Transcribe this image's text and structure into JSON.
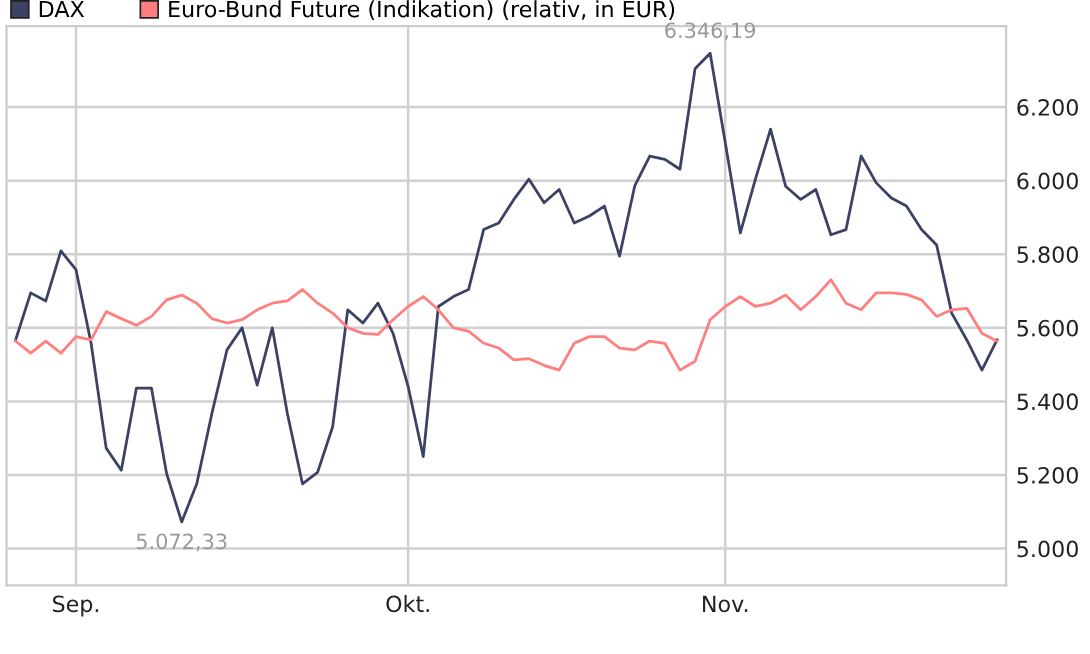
{
  "chart_data": {
    "type": "line",
    "categories": [
      null,
      null,
      null,
      null,
      "Sep.",
      null,
      null,
      null,
      null,
      null,
      null,
      null,
      null,
      null,
      null,
      null,
      null,
      null,
      null,
      null,
      null,
      null,
      null,
      null,
      null,
      null,
      "Okt.",
      null,
      null,
      null,
      null,
      null,
      null,
      null,
      null,
      null,
      null,
      null,
      null,
      null,
      null,
      null,
      null,
      null,
      null,
      null,
      null,
      "Nov.",
      null,
      null,
      null,
      null,
      null,
      null,
      null,
      null,
      null,
      null,
      null,
      null,
      null,
      null,
      null,
      null,
      null,
      null
    ],
    "series": [
      {
        "name": "DAX",
        "color": "#3b4264",
        "values": [
          5567,
          5695,
          5673,
          5809,
          5758,
          5558,
          5273,
          5213,
          5436,
          5436,
          5204,
          5072.33,
          5176,
          5367,
          5540,
          5600,
          5444,
          5600,
          5367,
          5176,
          5207,
          5331,
          5649,
          5613,
          5667,
          5585,
          5440,
          5250,
          5658,
          5685,
          5704,
          5867,
          5885,
          5949,
          6004,
          5940,
          5976,
          5885,
          5904,
          5931,
          5795,
          5985,
          6067,
          6058,
          6031,
          6304,
          6346.19,
          6104,
          5858,
          6004,
          6140,
          5985,
          5949,
          5976,
          5853,
          5867,
          6067,
          5994,
          5953,
          5931,
          5867,
          5825,
          5640,
          5567,
          5485,
          5567
        ]
      },
      {
        "name": "Euro-Bund Future (Indikation) (relativ, in EUR)",
        "color": "#ff7f7f",
        "values": [
          5564,
          5531,
          5564,
          5531,
          5576,
          5567,
          5644,
          5625,
          5607,
          5631,
          5676,
          5689,
          5667,
          5625,
          5613,
          5622,
          5649,
          5667,
          5673,
          5704,
          5667,
          5640,
          5600,
          5585,
          5582,
          5622,
          5658,
          5685,
          5649,
          5600,
          5591,
          5558,
          5545,
          5513,
          5516,
          5498,
          5485,
          5558,
          5576,
          5576,
          5545,
          5540,
          5564,
          5558,
          5485,
          5509,
          5622,
          5658,
          5685,
          5658,
          5667,
          5689,
          5649,
          5685,
          5731,
          5667,
          5649,
          5695,
          5695,
          5691,
          5676,
          5631,
          5649,
          5653,
          5585,
          5564
        ]
      }
    ],
    "ylim": [
      4900,
      6420
    ],
    "yticks": [
      {
        "value": 5000,
        "label": "5.000"
      },
      {
        "value": 5200,
        "label": "5.200"
      },
      {
        "value": 5400,
        "label": "5.400"
      },
      {
        "value": 5600,
        "label": "5.600"
      },
      {
        "value": 5800,
        "label": "5.800"
      },
      {
        "value": 6000,
        "label": "6.000"
      },
      {
        "value": 6200,
        "label": "6.200"
      }
    ],
    "grid": true,
    "legend": "top left",
    "annotations": [
      {
        "text": "5.072,33",
        "y": 5072.33
      },
      {
        "text": "6.346,19",
        "y": 6346.19
      }
    ]
  }
}
